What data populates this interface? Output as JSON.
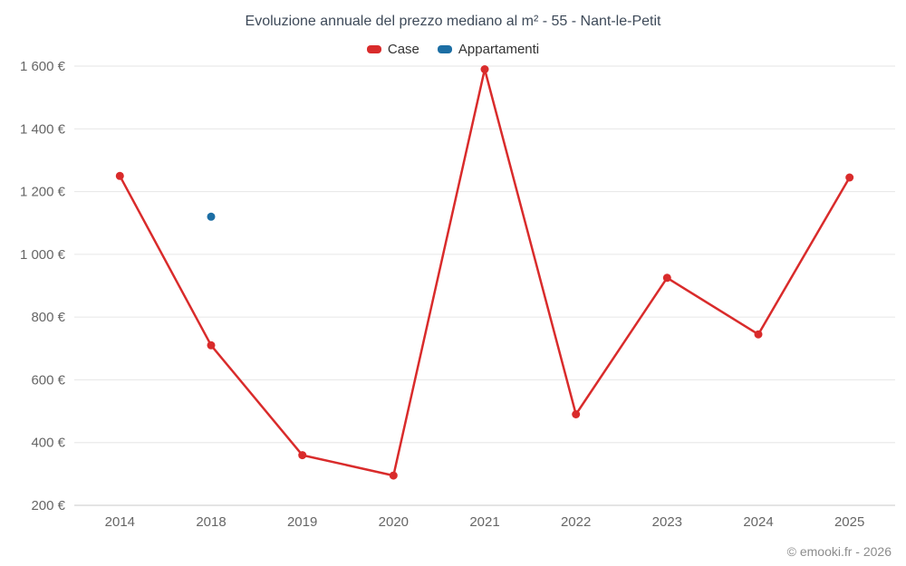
{
  "title": "Evoluzione annuale del prezzo mediano al m² - 55 - Nant-le-Petit",
  "footer": "© emooki.fr - 2026",
  "legend": [
    {
      "label": "Case",
      "color": "#d92b2b"
    },
    {
      "label": "Appartamenti",
      "color": "#1c6ea4"
    }
  ],
  "chart_data": {
    "type": "line",
    "title": "Evoluzione annuale del prezzo mediano al m² - 55 - Nant-le-Petit",
    "categories": [
      "2014",
      "2018",
      "2019",
      "2020",
      "2021",
      "2022",
      "2023",
      "2024",
      "2025"
    ],
    "series": [
      {
        "name": "Case",
        "color": "#d92b2b",
        "values": [
          1250,
          710,
          360,
          295,
          1590,
          490,
          925,
          745,
          1245
        ]
      },
      {
        "name": "Appartamenti",
        "color": "#1c6ea4",
        "values": [
          null,
          1120,
          null,
          null,
          null,
          null,
          null,
          null,
          null
        ]
      }
    ],
    "xlabel": "",
    "ylabel": "",
    "ylim": [
      200,
      1600
    ],
    "yticks": [
      200,
      400,
      600,
      800,
      1000,
      1200,
      1400,
      1600
    ],
    "ytick_suffix": " €",
    "grid": true,
    "legend_position": "top"
  }
}
